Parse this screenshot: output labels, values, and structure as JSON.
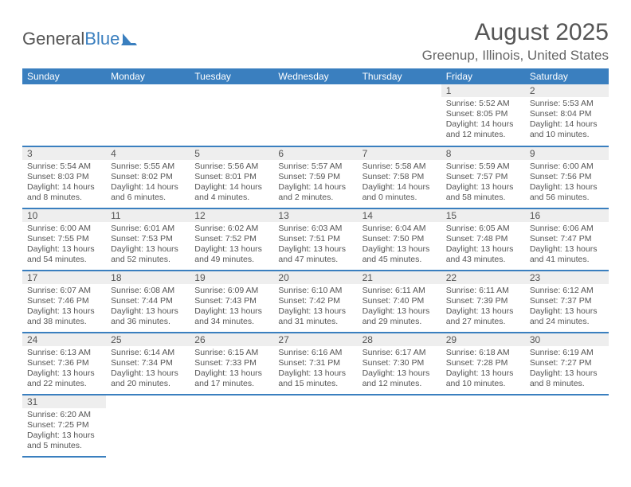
{
  "logo": {
    "textA": "General",
    "textB": "Blue"
  },
  "title": "August 2025",
  "location": "Greenup, Illinois, United States",
  "colors": {
    "header_bg": "#3a7fbf",
    "header_fg": "#ffffff",
    "daynum_bg": "#eeeeee",
    "text": "#555555",
    "rule": "#3a7fbf"
  },
  "weekdays": [
    "Sunday",
    "Monday",
    "Tuesday",
    "Wednesday",
    "Thursday",
    "Friday",
    "Saturday"
  ],
  "weeks": [
    [
      null,
      null,
      null,
      null,
      null,
      {
        "n": "1",
        "sr": "5:52 AM",
        "ss": "8:05 PM",
        "dl": "14 hours and 12 minutes."
      },
      {
        "n": "2",
        "sr": "5:53 AM",
        "ss": "8:04 PM",
        "dl": "14 hours and 10 minutes."
      }
    ],
    [
      {
        "n": "3",
        "sr": "5:54 AM",
        "ss": "8:03 PM",
        "dl": "14 hours and 8 minutes."
      },
      {
        "n": "4",
        "sr": "5:55 AM",
        "ss": "8:02 PM",
        "dl": "14 hours and 6 minutes."
      },
      {
        "n": "5",
        "sr": "5:56 AM",
        "ss": "8:01 PM",
        "dl": "14 hours and 4 minutes."
      },
      {
        "n": "6",
        "sr": "5:57 AM",
        "ss": "7:59 PM",
        "dl": "14 hours and 2 minutes."
      },
      {
        "n": "7",
        "sr": "5:58 AM",
        "ss": "7:58 PM",
        "dl": "14 hours and 0 minutes."
      },
      {
        "n": "8",
        "sr": "5:59 AM",
        "ss": "7:57 PM",
        "dl": "13 hours and 58 minutes."
      },
      {
        "n": "9",
        "sr": "6:00 AM",
        "ss": "7:56 PM",
        "dl": "13 hours and 56 minutes."
      }
    ],
    [
      {
        "n": "10",
        "sr": "6:00 AM",
        "ss": "7:55 PM",
        "dl": "13 hours and 54 minutes."
      },
      {
        "n": "11",
        "sr": "6:01 AM",
        "ss": "7:53 PM",
        "dl": "13 hours and 52 minutes."
      },
      {
        "n": "12",
        "sr": "6:02 AM",
        "ss": "7:52 PM",
        "dl": "13 hours and 49 minutes."
      },
      {
        "n": "13",
        "sr": "6:03 AM",
        "ss": "7:51 PM",
        "dl": "13 hours and 47 minutes."
      },
      {
        "n": "14",
        "sr": "6:04 AM",
        "ss": "7:50 PM",
        "dl": "13 hours and 45 minutes."
      },
      {
        "n": "15",
        "sr": "6:05 AM",
        "ss": "7:48 PM",
        "dl": "13 hours and 43 minutes."
      },
      {
        "n": "16",
        "sr": "6:06 AM",
        "ss": "7:47 PM",
        "dl": "13 hours and 41 minutes."
      }
    ],
    [
      {
        "n": "17",
        "sr": "6:07 AM",
        "ss": "7:46 PM",
        "dl": "13 hours and 38 minutes."
      },
      {
        "n": "18",
        "sr": "6:08 AM",
        "ss": "7:44 PM",
        "dl": "13 hours and 36 minutes."
      },
      {
        "n": "19",
        "sr": "6:09 AM",
        "ss": "7:43 PM",
        "dl": "13 hours and 34 minutes."
      },
      {
        "n": "20",
        "sr": "6:10 AM",
        "ss": "7:42 PM",
        "dl": "13 hours and 31 minutes."
      },
      {
        "n": "21",
        "sr": "6:11 AM",
        "ss": "7:40 PM",
        "dl": "13 hours and 29 minutes."
      },
      {
        "n": "22",
        "sr": "6:11 AM",
        "ss": "7:39 PM",
        "dl": "13 hours and 27 minutes."
      },
      {
        "n": "23",
        "sr": "6:12 AM",
        "ss": "7:37 PM",
        "dl": "13 hours and 24 minutes."
      }
    ],
    [
      {
        "n": "24",
        "sr": "6:13 AM",
        "ss": "7:36 PM",
        "dl": "13 hours and 22 minutes."
      },
      {
        "n": "25",
        "sr": "6:14 AM",
        "ss": "7:34 PM",
        "dl": "13 hours and 20 minutes."
      },
      {
        "n": "26",
        "sr": "6:15 AM",
        "ss": "7:33 PM",
        "dl": "13 hours and 17 minutes."
      },
      {
        "n": "27",
        "sr": "6:16 AM",
        "ss": "7:31 PM",
        "dl": "13 hours and 15 minutes."
      },
      {
        "n": "28",
        "sr": "6:17 AM",
        "ss": "7:30 PM",
        "dl": "13 hours and 12 minutes."
      },
      {
        "n": "29",
        "sr": "6:18 AM",
        "ss": "7:28 PM",
        "dl": "13 hours and 10 minutes."
      },
      {
        "n": "30",
        "sr": "6:19 AM",
        "ss": "7:27 PM",
        "dl": "13 hours and 8 minutes."
      }
    ],
    [
      {
        "n": "31",
        "sr": "6:20 AM",
        "ss": "7:25 PM",
        "dl": "13 hours and 5 minutes."
      },
      null,
      null,
      null,
      null,
      null,
      null
    ]
  ],
  "labels": {
    "sunrise": "Sunrise: ",
    "sunset": "Sunset: ",
    "daylight": "Daylight: "
  }
}
